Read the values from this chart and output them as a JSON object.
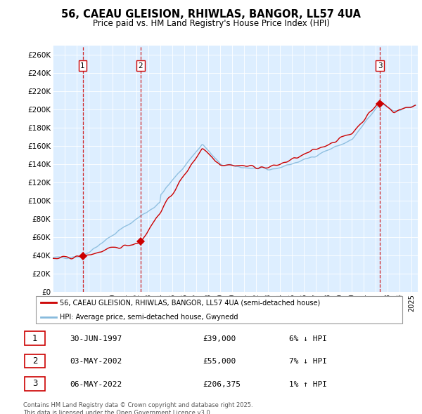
{
  "title1": "56, CAEAU GLEISION, RHIWLAS, BANGOR, LL57 4UA",
  "title2": "Price paid vs. HM Land Registry's House Price Index (HPI)",
  "ylabel_ticks": [
    "£0",
    "£20K",
    "£40K",
    "£60K",
    "£80K",
    "£100K",
    "£120K",
    "£140K",
    "£160K",
    "£180K",
    "£200K",
    "£220K",
    "£240K",
    "£260K"
  ],
  "ytick_values": [
    0,
    20000,
    40000,
    60000,
    80000,
    100000,
    120000,
    140000,
    160000,
    180000,
    200000,
    220000,
    240000,
    260000
  ],
  "ymax": 270000,
  "legend_line1": "56, CAEAU GLEISION, RHIWLAS, BANGOR, LL57 4UA (semi-detached house)",
  "legend_line2": "HPI: Average price, semi-detached house, Gwynedd",
  "sale1_date": "30-JUN-1997",
  "sale1_price": 39000,
  "sale1_label": "1",
  "sale1_pct": "6% ↓ HPI",
  "sale2_date": "03-MAY-2002",
  "sale2_price": 55000,
  "sale2_label": "2",
  "sale2_pct": "7% ↓ HPI",
  "sale3_date": "06-MAY-2022",
  "sale3_price": 206375,
  "sale3_label": "3",
  "sale3_pct": "1% ↑ HPI",
  "footer": "Contains HM Land Registry data © Crown copyright and database right 2025.\nThis data is licensed under the Open Government Licence v3.0.",
  "line_color_red": "#cc0000",
  "line_color_blue": "#88bbdd",
  "bg_color": "#ddeeff",
  "grid_color": "#ffffff",
  "sale_color_red": "#cc0000",
  "vline_color": "#cc0000",
  "label_box_color": "#cc0000"
}
